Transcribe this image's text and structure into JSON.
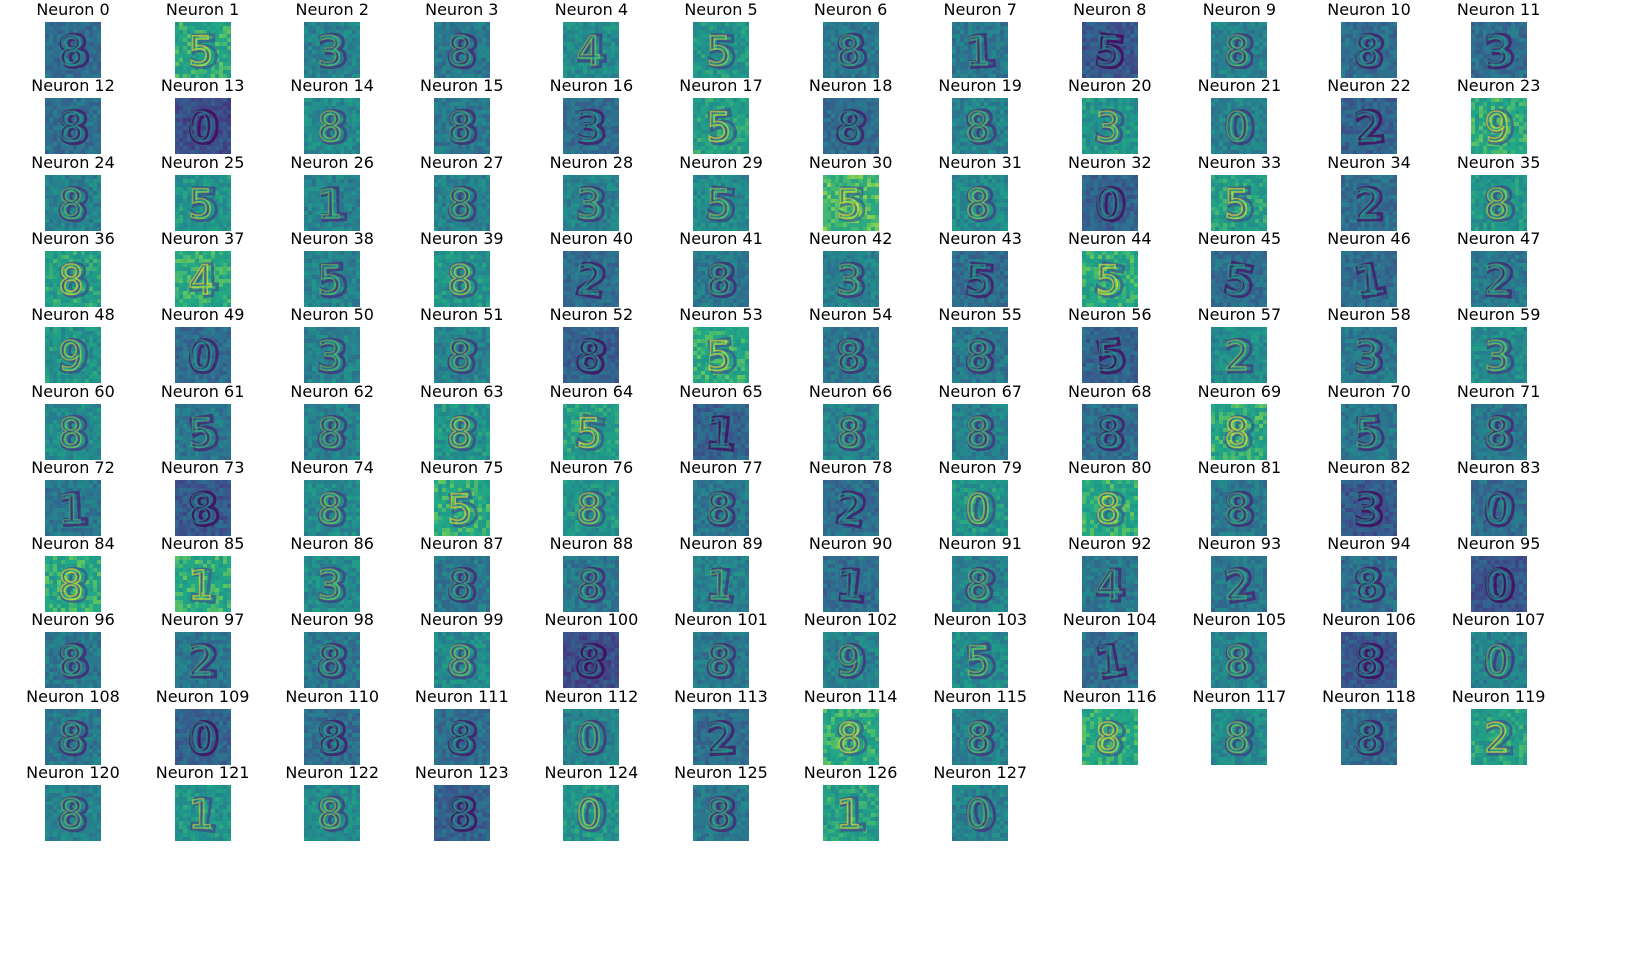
{
  "chart_data": {
    "type": "heatmap",
    "title": "",
    "xlabel": "",
    "ylabel": "",
    "colormap": "viridis",
    "grid": false,
    "axes": "off",
    "columns": 12,
    "panels": [
      {
        "label": "Neuron 0",
        "mean": 0.45,
        "digit": "8"
      },
      {
        "label": "Neuron 1",
        "mean": 0.75,
        "digit": "5"
      },
      {
        "label": "Neuron 2",
        "mean": 0.55,
        "digit": "3"
      },
      {
        "label": "Neuron 3",
        "mean": 0.5,
        "digit": "8"
      },
      {
        "label": "Neuron 4",
        "mean": 0.6,
        "digit": "4"
      },
      {
        "label": "Neuron 5",
        "mean": 0.65,
        "digit": "5"
      },
      {
        "label": "Neuron 6",
        "mean": 0.5,
        "digit": "8"
      },
      {
        "label": "Neuron 7",
        "mean": 0.5,
        "digit": "1"
      },
      {
        "label": "Neuron 8",
        "mean": 0.35,
        "digit": "5"
      },
      {
        "label": "Neuron 9",
        "mean": 0.55,
        "digit": "8"
      },
      {
        "label": "Neuron 10",
        "mean": 0.45,
        "digit": "8"
      },
      {
        "label": "Neuron 11",
        "mean": 0.45,
        "digit": "3"
      },
      {
        "label": "Neuron 12",
        "mean": 0.45,
        "digit": "8"
      },
      {
        "label": "Neuron 13",
        "mean": 0.3,
        "digit": "0"
      },
      {
        "label": "Neuron 14",
        "mean": 0.6,
        "digit": "8"
      },
      {
        "label": "Neuron 15",
        "mean": 0.5,
        "digit": "8"
      },
      {
        "label": "Neuron 16",
        "mean": 0.45,
        "digit": "3"
      },
      {
        "label": "Neuron 17",
        "mean": 0.7,
        "digit": "5"
      },
      {
        "label": "Neuron 18",
        "mean": 0.45,
        "digit": "8"
      },
      {
        "label": "Neuron 19",
        "mean": 0.55,
        "digit": "8"
      },
      {
        "label": "Neuron 20",
        "mean": 0.65,
        "digit": "3"
      },
      {
        "label": "Neuron 21",
        "mean": 0.55,
        "digit": "0"
      },
      {
        "label": "Neuron 22",
        "mean": 0.4,
        "digit": "2"
      },
      {
        "label": "Neuron 23",
        "mean": 0.75,
        "digit": "9"
      },
      {
        "label": "Neuron 24",
        "mean": 0.55,
        "digit": "8"
      },
      {
        "label": "Neuron 25",
        "mean": 0.65,
        "digit": "5"
      },
      {
        "label": "Neuron 26",
        "mean": 0.55,
        "digit": "1"
      },
      {
        "label": "Neuron 27",
        "mean": 0.55,
        "digit": "8"
      },
      {
        "label": "Neuron 28",
        "mean": 0.55,
        "digit": "3"
      },
      {
        "label": "Neuron 29",
        "mean": 0.6,
        "digit": "5"
      },
      {
        "label": "Neuron 30",
        "mean": 0.8,
        "digit": "5"
      },
      {
        "label": "Neuron 31",
        "mean": 0.6,
        "digit": "8"
      },
      {
        "label": "Neuron 32",
        "mean": 0.4,
        "digit": "0"
      },
      {
        "label": "Neuron 33",
        "mean": 0.7,
        "digit": "5"
      },
      {
        "label": "Neuron 34",
        "mean": 0.45,
        "digit": "2"
      },
      {
        "label": "Neuron 35",
        "mean": 0.65,
        "digit": "8"
      },
      {
        "label": "Neuron 36",
        "mean": 0.7,
        "digit": "8"
      },
      {
        "label": "Neuron 37",
        "mean": 0.75,
        "digit": "4"
      },
      {
        "label": "Neuron 38",
        "mean": 0.55,
        "digit": "5"
      },
      {
        "label": "Neuron 39",
        "mean": 0.65,
        "digit": "8"
      },
      {
        "label": "Neuron 40",
        "mean": 0.45,
        "digit": "2"
      },
      {
        "label": "Neuron 41",
        "mean": 0.5,
        "digit": "8"
      },
      {
        "label": "Neuron 42",
        "mean": 0.55,
        "digit": "3"
      },
      {
        "label": "Neuron 43",
        "mean": 0.45,
        "digit": "5"
      },
      {
        "label": "Neuron 44",
        "mean": 0.75,
        "digit": "5"
      },
      {
        "label": "Neuron 45",
        "mean": 0.45,
        "digit": "5"
      },
      {
        "label": "Neuron 46",
        "mean": 0.45,
        "digit": "1"
      },
      {
        "label": "Neuron 47",
        "mean": 0.5,
        "digit": "2"
      },
      {
        "label": "Neuron 48",
        "mean": 0.65,
        "digit": "9"
      },
      {
        "label": "Neuron 49",
        "mean": 0.45,
        "digit": "0"
      },
      {
        "label": "Neuron 50",
        "mean": 0.55,
        "digit": "3"
      },
      {
        "label": "Neuron 51",
        "mean": 0.55,
        "digit": "8"
      },
      {
        "label": "Neuron 52",
        "mean": 0.4,
        "digit": "8"
      },
      {
        "label": "Neuron 53",
        "mean": 0.75,
        "digit": "5"
      },
      {
        "label": "Neuron 54",
        "mean": 0.5,
        "digit": "8"
      },
      {
        "label": "Neuron 55",
        "mean": 0.5,
        "digit": "8"
      },
      {
        "label": "Neuron 56",
        "mean": 0.4,
        "digit": "5"
      },
      {
        "label": "Neuron 57",
        "mean": 0.6,
        "digit": "2"
      },
      {
        "label": "Neuron 58",
        "mean": 0.5,
        "digit": "3"
      },
      {
        "label": "Neuron 59",
        "mean": 0.6,
        "digit": "3"
      },
      {
        "label": "Neuron 60",
        "mean": 0.6,
        "digit": "8"
      },
      {
        "label": "Neuron 61",
        "mean": 0.5,
        "digit": "5"
      },
      {
        "label": "Neuron 62",
        "mean": 0.55,
        "digit": "8"
      },
      {
        "label": "Neuron 63",
        "mean": 0.65,
        "digit": "8"
      },
      {
        "label": "Neuron 64",
        "mean": 0.7,
        "digit": "5"
      },
      {
        "label": "Neuron 65",
        "mean": 0.4,
        "digit": "1"
      },
      {
        "label": "Neuron 66",
        "mean": 0.55,
        "digit": "8"
      },
      {
        "label": "Neuron 67",
        "mean": 0.55,
        "digit": "8"
      },
      {
        "label": "Neuron 68",
        "mean": 0.45,
        "digit": "8"
      },
      {
        "label": "Neuron 69",
        "mean": 0.75,
        "digit": "8"
      },
      {
        "label": "Neuron 70",
        "mean": 0.5,
        "digit": "5"
      },
      {
        "label": "Neuron 71",
        "mean": 0.5,
        "digit": "8"
      },
      {
        "label": "Neuron 72",
        "mean": 0.5,
        "digit": "1"
      },
      {
        "label": "Neuron 73",
        "mean": 0.35,
        "digit": "8"
      },
      {
        "label": "Neuron 74",
        "mean": 0.6,
        "digit": "8"
      },
      {
        "label": "Neuron 75",
        "mean": 0.75,
        "digit": "5"
      },
      {
        "label": "Neuron 76",
        "mean": 0.65,
        "digit": "8"
      },
      {
        "label": "Neuron 77",
        "mean": 0.5,
        "digit": "8"
      },
      {
        "label": "Neuron 78",
        "mean": 0.45,
        "digit": "2"
      },
      {
        "label": "Neuron 79",
        "mean": 0.65,
        "digit": "0"
      },
      {
        "label": "Neuron 80",
        "mean": 0.75,
        "digit": "8"
      },
      {
        "label": "Neuron 81",
        "mean": 0.5,
        "digit": "8"
      },
      {
        "label": "Neuron 82",
        "mean": 0.35,
        "digit": "3"
      },
      {
        "label": "Neuron 83",
        "mean": 0.45,
        "digit": "0"
      },
      {
        "label": "Neuron 84",
        "mean": 0.75,
        "digit": "8"
      },
      {
        "label": "Neuron 85",
        "mean": 0.75,
        "digit": "1"
      },
      {
        "label": "Neuron 86",
        "mean": 0.6,
        "digit": "3"
      },
      {
        "label": "Neuron 87",
        "mean": 0.5,
        "digit": "8"
      },
      {
        "label": "Neuron 88",
        "mean": 0.5,
        "digit": "8"
      },
      {
        "label": "Neuron 89",
        "mean": 0.55,
        "digit": "1"
      },
      {
        "label": "Neuron 90",
        "mean": 0.45,
        "digit": "1"
      },
      {
        "label": "Neuron 91",
        "mean": 0.55,
        "digit": "8"
      },
      {
        "label": "Neuron 92",
        "mean": 0.5,
        "digit": "4"
      },
      {
        "label": "Neuron 93",
        "mean": 0.5,
        "digit": "2"
      },
      {
        "label": "Neuron 94",
        "mean": 0.45,
        "digit": "8"
      },
      {
        "label": "Neuron 95",
        "mean": 0.35,
        "digit": "0"
      },
      {
        "label": "Neuron 96",
        "mean": 0.5,
        "digit": "8"
      },
      {
        "label": "Neuron 97",
        "mean": 0.5,
        "digit": "2"
      },
      {
        "label": "Neuron 98",
        "mean": 0.5,
        "digit": "8"
      },
      {
        "label": "Neuron 99",
        "mean": 0.6,
        "digit": "8"
      },
      {
        "label": "Neuron 100",
        "mean": 0.3,
        "digit": "8"
      },
      {
        "label": "Neuron 101",
        "mean": 0.5,
        "digit": "8"
      },
      {
        "label": "Neuron 102",
        "mean": 0.55,
        "digit": "9"
      },
      {
        "label": "Neuron 103",
        "mean": 0.6,
        "digit": "5"
      },
      {
        "label": "Neuron 104",
        "mean": 0.45,
        "digit": "1"
      },
      {
        "label": "Neuron 105",
        "mean": 0.55,
        "digit": "8"
      },
      {
        "label": "Neuron 106",
        "mean": 0.35,
        "digit": "8"
      },
      {
        "label": "Neuron 107",
        "mean": 0.55,
        "digit": "0"
      },
      {
        "label": "Neuron 108",
        "mean": 0.5,
        "digit": "8"
      },
      {
        "label": "Neuron 109",
        "mean": 0.4,
        "digit": "0"
      },
      {
        "label": "Neuron 110",
        "mean": 0.45,
        "digit": "8"
      },
      {
        "label": "Neuron 111",
        "mean": 0.45,
        "digit": "8"
      },
      {
        "label": "Neuron 112",
        "mean": 0.55,
        "digit": "0"
      },
      {
        "label": "Neuron 113",
        "mean": 0.45,
        "digit": "2"
      },
      {
        "label": "Neuron 114",
        "mean": 0.75,
        "digit": "8"
      },
      {
        "label": "Neuron 115",
        "mean": 0.55,
        "digit": "8"
      },
      {
        "label": "Neuron 116",
        "mean": 0.75,
        "digit": "8"
      },
      {
        "label": "Neuron 117",
        "mean": 0.6,
        "digit": "8"
      },
      {
        "label": "Neuron 118",
        "mean": 0.45,
        "digit": "8"
      },
      {
        "label": "Neuron 119",
        "mean": 0.7,
        "digit": "2"
      },
      {
        "label": "Neuron 120",
        "mean": 0.55,
        "digit": "8"
      },
      {
        "label": "Neuron 121",
        "mean": 0.65,
        "digit": "1"
      },
      {
        "label": "Neuron 122",
        "mean": 0.6,
        "digit": "8"
      },
      {
        "label": "Neuron 123",
        "mean": 0.4,
        "digit": "8"
      },
      {
        "label": "Neuron 124",
        "mean": 0.65,
        "digit": "0"
      },
      {
        "label": "Neuron 125",
        "mean": 0.5,
        "digit": "8"
      },
      {
        "label": "Neuron 126",
        "mean": 0.7,
        "digit": "1"
      },
      {
        "label": "Neuron 127",
        "mean": 0.55,
        "digit": "0"
      }
    ]
  }
}
